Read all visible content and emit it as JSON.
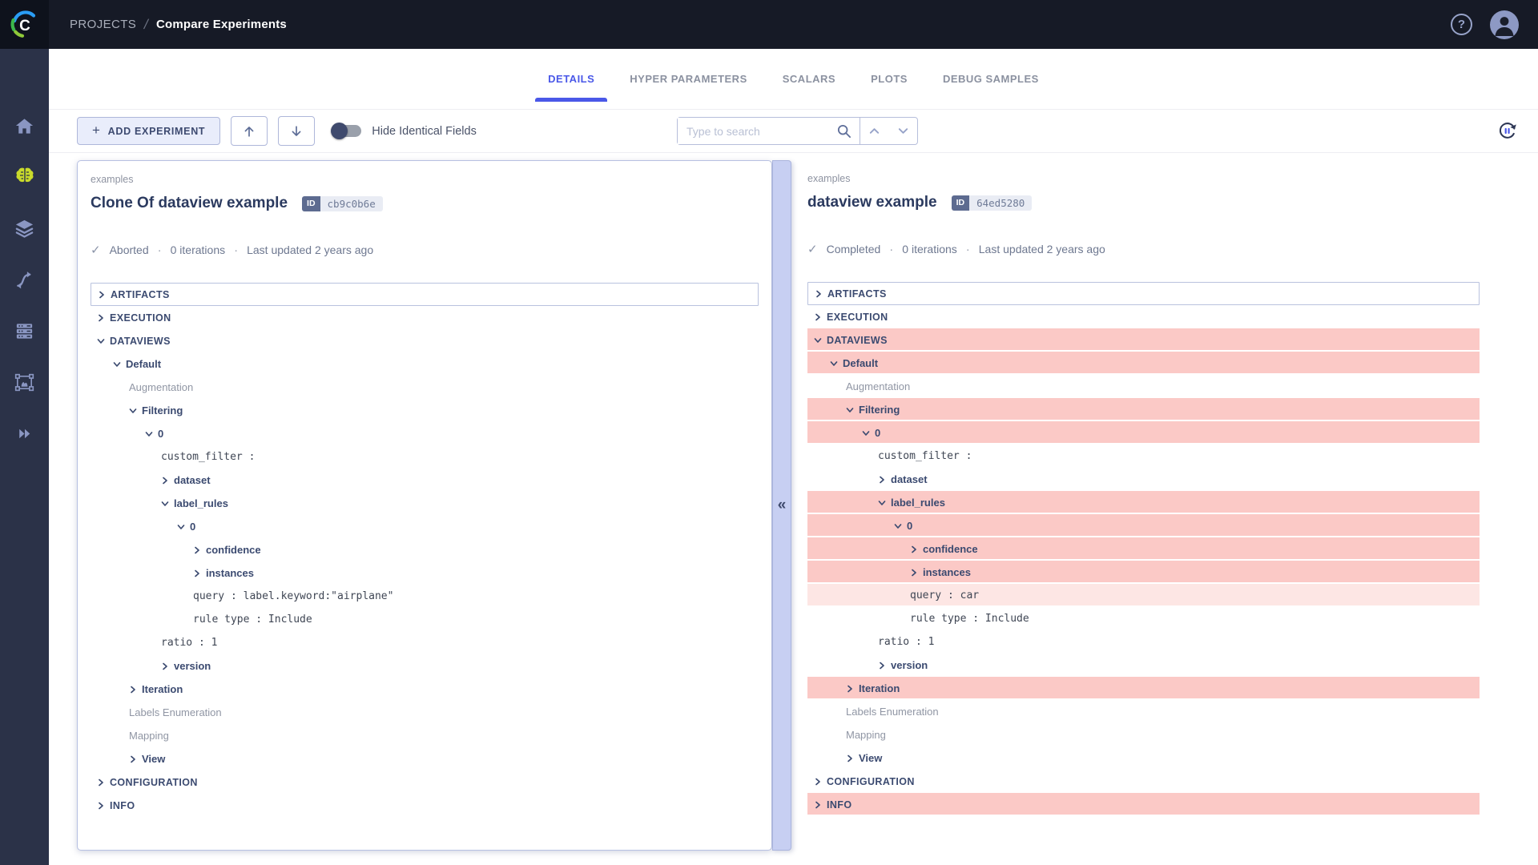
{
  "topbar": {
    "breadcrumb": {
      "root": "PROJECTS",
      "separator": "/",
      "current": "Compare Experiments"
    },
    "help_glyph": "?"
  },
  "sidebar": {
    "icons": [
      "home",
      "projects",
      "datasets",
      "pipelines",
      "workers-queues",
      "annotator",
      "applications"
    ],
    "active_icon": "projects"
  },
  "tabs": [
    {
      "label": "DETAILS",
      "active": true
    },
    {
      "label": "HYPER PARAMETERS",
      "active": false
    },
    {
      "label": "SCALARS",
      "active": false
    },
    {
      "label": "PLOTS",
      "active": false
    },
    {
      "label": "DEBUG SAMPLES",
      "active": false
    }
  ],
  "toolbar": {
    "add_experiment_label": "ADD EXPERIMENT",
    "plus_glyph": "+",
    "hide_identical_label": "Hide Identical Fields",
    "search_placeholder": "Type to search"
  },
  "misc": {
    "dot": "·",
    "check": "✓",
    "collapse_glyph": "«"
  },
  "colors": {
    "accent_blue": "#4a58e8",
    "highlight_strong": "#fbc9c6",
    "highlight_light": "#fde6e4",
    "sidebar_active_icon": "#c9da2b",
    "topbar_bg": "#161a26",
    "sidebar_bg": "#2b3248"
  },
  "experiments": [
    {
      "project": "examples",
      "title": "Clone Of dataview example",
      "id_label": "ID",
      "id_value": "cb9c0b6e",
      "status": "Aborted",
      "iterations": "0 iterations",
      "updated": "Last updated 2 years ago",
      "tree": [
        {
          "label": "ARTIFACTS",
          "indent": 0,
          "caret": "collapsed",
          "kind": "section",
          "boxed": true,
          "hl": "none"
        },
        {
          "label": "EXECUTION",
          "indent": 0,
          "caret": "collapsed",
          "kind": "section",
          "boxed": false,
          "hl": "none"
        },
        {
          "label": "DATAVIEWS",
          "indent": 0,
          "caret": "expanded",
          "kind": "section",
          "boxed": false,
          "hl": "none"
        },
        {
          "label": "Default",
          "indent": 1,
          "caret": "expanded",
          "kind": "group",
          "boxed": false,
          "hl": "none"
        },
        {
          "label": "Augmentation",
          "indent": 2,
          "caret": "none",
          "kind": "leaf",
          "boxed": false,
          "hl": "none"
        },
        {
          "label": "Filtering",
          "indent": 2,
          "caret": "expanded",
          "kind": "group",
          "boxed": false,
          "hl": "none"
        },
        {
          "label": "0",
          "indent": 3,
          "caret": "expanded",
          "kind": "group",
          "boxed": false,
          "hl": "none"
        },
        {
          "label": "custom_filter :",
          "indent": 4,
          "caret": "none",
          "kind": "kv",
          "boxed": false,
          "hl": "none"
        },
        {
          "label": "dataset",
          "indent": 4,
          "caret": "collapsed",
          "kind": "group",
          "boxed": false,
          "hl": "none"
        },
        {
          "label": "label_rules",
          "indent": 4,
          "caret": "expanded",
          "kind": "group",
          "boxed": false,
          "hl": "none"
        },
        {
          "label": "0",
          "indent": 5,
          "caret": "expanded",
          "kind": "group",
          "boxed": false,
          "hl": "none"
        },
        {
          "label": "confidence",
          "indent": 6,
          "caret": "collapsed",
          "kind": "group",
          "boxed": false,
          "hl": "none"
        },
        {
          "label": "instances",
          "indent": 6,
          "caret": "collapsed",
          "kind": "group",
          "boxed": false,
          "hl": "none"
        },
        {
          "label": "query : label.keyword:\"airplane\"",
          "indent": 6,
          "caret": "none",
          "kind": "kv",
          "boxed": false,
          "hl": "none"
        },
        {
          "label": "rule type : Include",
          "indent": 6,
          "caret": "none",
          "kind": "kv",
          "boxed": false,
          "hl": "none"
        },
        {
          "label": "ratio : 1",
          "indent": 4,
          "caret": "none",
          "kind": "kv",
          "boxed": false,
          "hl": "none"
        },
        {
          "label": "version",
          "indent": 4,
          "caret": "collapsed",
          "kind": "group",
          "boxed": false,
          "hl": "none"
        },
        {
          "label": "Iteration",
          "indent": 2,
          "caret": "collapsed",
          "kind": "group",
          "boxed": false,
          "hl": "none"
        },
        {
          "label": "Labels Enumeration",
          "indent": 2,
          "caret": "none",
          "kind": "leaf",
          "boxed": false,
          "hl": "none"
        },
        {
          "label": "Mapping",
          "indent": 2,
          "caret": "none",
          "kind": "leaf",
          "boxed": false,
          "hl": "none"
        },
        {
          "label": "View",
          "indent": 2,
          "caret": "collapsed",
          "kind": "group",
          "boxed": false,
          "hl": "none"
        },
        {
          "label": "CONFIGURATION",
          "indent": 0,
          "caret": "collapsed",
          "kind": "section",
          "boxed": false,
          "hl": "none"
        },
        {
          "label": "INFO",
          "indent": 0,
          "caret": "collapsed",
          "kind": "section",
          "boxed": false,
          "hl": "none"
        }
      ]
    },
    {
      "project": "examples",
      "title": "dataview example",
      "id_label": "ID",
      "id_value": "64ed5280",
      "status": "Completed",
      "iterations": "0 iterations",
      "updated": "Last updated 2 years ago",
      "tree": [
        {
          "label": "ARTIFACTS",
          "indent": 0,
          "caret": "collapsed",
          "kind": "section",
          "boxed": true,
          "hl": "none"
        },
        {
          "label": "EXECUTION",
          "indent": 0,
          "caret": "collapsed",
          "kind": "section",
          "boxed": false,
          "hl": "none"
        },
        {
          "label": "DATAVIEWS",
          "indent": 0,
          "caret": "expanded",
          "kind": "section",
          "boxed": false,
          "hl": "strong"
        },
        {
          "label": "Default",
          "indent": 1,
          "caret": "expanded",
          "kind": "group",
          "boxed": false,
          "hl": "strong"
        },
        {
          "label": "Augmentation",
          "indent": 2,
          "caret": "none",
          "kind": "leaf",
          "boxed": false,
          "hl": "none"
        },
        {
          "label": "Filtering",
          "indent": 2,
          "caret": "expanded",
          "kind": "group",
          "boxed": false,
          "hl": "strong"
        },
        {
          "label": "0",
          "indent": 3,
          "caret": "expanded",
          "kind": "group",
          "boxed": false,
          "hl": "strong"
        },
        {
          "label": "custom_filter :",
          "indent": 4,
          "caret": "none",
          "kind": "kv",
          "boxed": false,
          "hl": "none"
        },
        {
          "label": "dataset",
          "indent": 4,
          "caret": "collapsed",
          "kind": "group",
          "boxed": false,
          "hl": "none"
        },
        {
          "label": "label_rules",
          "indent": 4,
          "caret": "expanded",
          "kind": "group",
          "boxed": false,
          "hl": "strong"
        },
        {
          "label": "0",
          "indent": 5,
          "caret": "expanded",
          "kind": "group",
          "boxed": false,
          "hl": "strong"
        },
        {
          "label": "confidence",
          "indent": 6,
          "caret": "collapsed",
          "kind": "group",
          "boxed": false,
          "hl": "strong"
        },
        {
          "label": "instances",
          "indent": 6,
          "caret": "collapsed",
          "kind": "group",
          "boxed": false,
          "hl": "strong"
        },
        {
          "label": "query : car",
          "indent": 6,
          "caret": "none",
          "kind": "kv",
          "boxed": false,
          "hl": "light"
        },
        {
          "label": "rule type : Include",
          "indent": 6,
          "caret": "none",
          "kind": "kv",
          "boxed": false,
          "hl": "none"
        },
        {
          "label": "ratio : 1",
          "indent": 4,
          "caret": "none",
          "kind": "kv",
          "boxed": false,
          "hl": "none"
        },
        {
          "label": "version",
          "indent": 4,
          "caret": "collapsed",
          "kind": "group",
          "boxed": false,
          "hl": "none"
        },
        {
          "label": "Iteration",
          "indent": 2,
          "caret": "collapsed",
          "kind": "group",
          "boxed": false,
          "hl": "strong"
        },
        {
          "label": "Labels Enumeration",
          "indent": 2,
          "caret": "none",
          "kind": "leaf",
          "boxed": false,
          "hl": "none"
        },
        {
          "label": "Mapping",
          "indent": 2,
          "caret": "none",
          "kind": "leaf",
          "boxed": false,
          "hl": "none"
        },
        {
          "label": "View",
          "indent": 2,
          "caret": "collapsed",
          "kind": "group",
          "boxed": false,
          "hl": "none"
        },
        {
          "label": "CONFIGURATION",
          "indent": 0,
          "caret": "collapsed",
          "kind": "section",
          "boxed": false,
          "hl": "none"
        },
        {
          "label": "INFO",
          "indent": 0,
          "caret": "collapsed",
          "kind": "section",
          "boxed": false,
          "hl": "strong"
        }
      ]
    }
  ]
}
